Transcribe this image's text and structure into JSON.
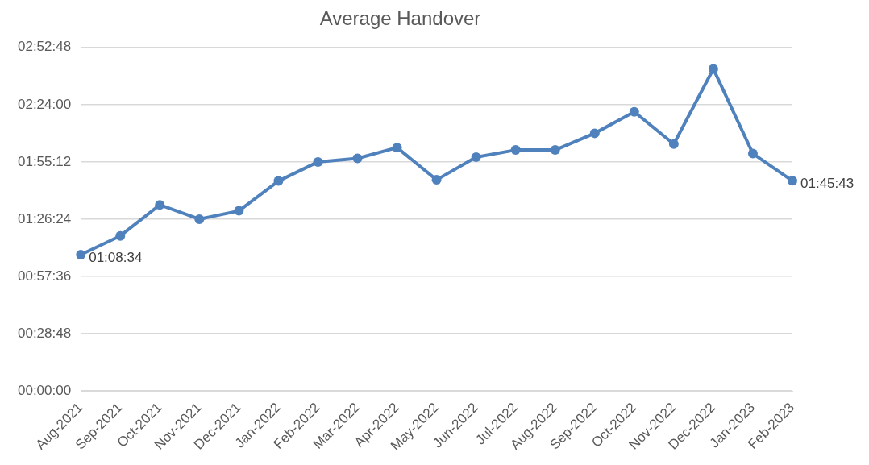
{
  "chart_data": {
    "type": "line",
    "title": "Average Handover",
    "categories": [
      "Aug-2021",
      "Sep-2021",
      "Oct-2021",
      "Nov-2021",
      "Dec-2021",
      "Jan-2022",
      "Feb-2022",
      "Mar-2022",
      "Apr-2022",
      "May-2022",
      "Jun-2022",
      "Jul-2022",
      "Aug-2022",
      "Sep-2022",
      "Oct-2022",
      "Nov-2022",
      "Dec-2022",
      "Jan-2023",
      "Feb-2023"
    ],
    "series": [
      {
        "color": "#4f81bd",
        "values": [
          1.1428,
          1.3,
          1.56,
          1.44,
          1.51,
          1.76,
          1.92,
          1.95,
          2.04,
          1.77,
          1.96,
          2.02,
          2.02,
          2.16,
          2.34,
          2.07,
          2.7,
          1.99,
          1.7619
        ],
        "value_labels": [
          "01:08:34",
          null,
          null,
          null,
          null,
          null,
          null,
          null,
          null,
          null,
          null,
          null,
          null,
          null,
          null,
          null,
          null,
          null,
          "01:45:43"
        ]
      }
    ],
    "ylim": [
      0,
      2.88
    ],
    "yticks": [
      {
        "value": 0,
        "label": "00:00:00"
      },
      {
        "value": 0.48,
        "label": "00:28:48"
      },
      {
        "value": 0.96,
        "label": "00:57:36"
      },
      {
        "value": 1.44,
        "label": "01:26:24"
      },
      {
        "value": 1.92,
        "label": "01:55:12"
      },
      {
        "value": 2.4,
        "label": "02:24:00"
      },
      {
        "value": 2.88,
        "label": "02:52:48"
      }
    ],
    "grid": "y",
    "legend": false,
    "marker": "circle",
    "line_style": "solid"
  }
}
